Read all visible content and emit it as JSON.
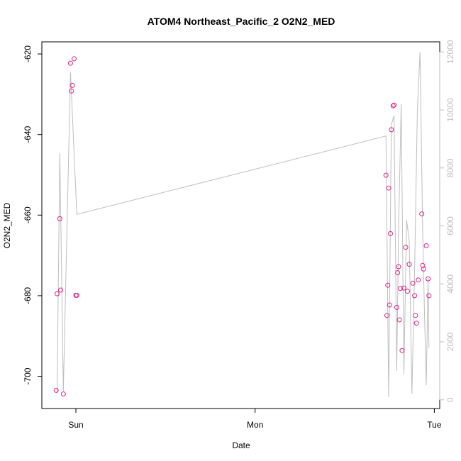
{
  "chart_data": {
    "type": "scatter",
    "title": "ATOM4 Northeast_Pacific_2 O2N2_MED",
    "xlabel": "Date",
    "ylabel": "O2N2_MED",
    "x_ticks": [
      "Sun",
      "Mon",
      "Tue"
    ],
    "x_tick_days": [
      0,
      1,
      2
    ],
    "xlim_days": [
      -0.19,
      2.03
    ],
    "ylim": [
      -708,
      -617
    ],
    "y_ticks": [
      -700,
      -680,
      -660,
      -640,
      -620
    ],
    "y2lim": [
      -300,
      12350
    ],
    "y2_ticks": [
      0,
      2000,
      4000,
      6000,
      8000,
      10000,
      12000
    ],
    "grid": false,
    "colors": {
      "points": "#e0218a",
      "line": "#bebebe",
      "axes": "#000000",
      "right_axis": "#bebebe"
    },
    "series": [
      {
        "kind": "points",
        "axis": "left",
        "x_days": [
          -0.11,
          -0.105,
          -0.09,
          -0.085,
          -0.07,
          -0.03,
          -0.025,
          -0.02,
          -0.01,
          0.0,
          0.005,
          1.73,
          1.735,
          1.74,
          1.745,
          1.75,
          1.755,
          1.76,
          1.77,
          1.775,
          1.79,
          1.795,
          1.8,
          1.805,
          1.81,
          1.82,
          1.83,
          1.84,
          1.85,
          1.86,
          1.88,
          1.89,
          1.895,
          1.9,
          1.91,
          1.93,
          1.935,
          1.94,
          1.955,
          1.965,
          1.97
        ],
        "y": [
          -703.5,
          -679.5,
          -660.9,
          -678.6,
          -704.4,
          -622.3,
          -629.2,
          -627.8,
          -621.2,
          -679.9,
          -679.9,
          -650.1,
          -684.9,
          -677.4,
          -653.3,
          -682.3,
          -664.6,
          -638.8,
          -632.9,
          -632.7,
          -682.9,
          -674.3,
          -672.8,
          -686.0,
          -678.2,
          -693.6,
          -678.1,
          -668.0,
          -678.9,
          -672.2,
          -676.9,
          -680.0,
          -684.9,
          -686.8,
          -676.1,
          -659.7,
          -672.5,
          -673.4,
          -667.6,
          -675.8,
          -680.0
        ]
      },
      {
        "kind": "line",
        "axis": "right",
        "x_days": [
          -0.105,
          -0.09,
          -0.07,
          -0.03,
          0.005,
          1.73,
          1.745,
          1.76,
          1.775,
          1.79,
          1.8,
          1.815,
          1.83,
          1.845,
          1.86,
          1.875,
          1.89,
          1.905,
          1.92,
          1.935,
          1.945,
          1.955,
          1.965,
          1.97
        ],
        "y": [
          200,
          8500,
          300,
          11300,
          6400,
          9100,
          100,
          9500,
          9800,
          1000,
          5800,
          10200,
          900,
          6200,
          5500,
          200,
          4500,
          9900,
          12000,
          5800,
          3000,
          500,
          4200,
          1800
        ]
      }
    ]
  }
}
